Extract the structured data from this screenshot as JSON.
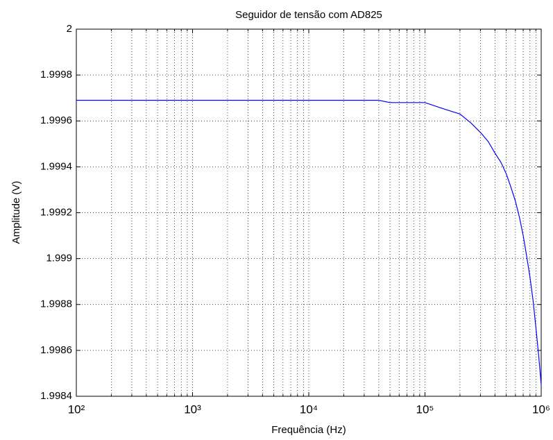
{
  "chart_data": {
    "type": "line",
    "title": "Seguidor de tensão com AD825",
    "xlabel": "Frequência (Hz)",
    "ylabel": "Amplitude (V)",
    "log_x": true,
    "grid": true,
    "x": [
      100,
      1000,
      10000,
      40000,
      50000,
      70000,
      100000,
      150000,
      200000,
      250000,
      300000,
      350000,
      400000,
      450000,
      500000,
      550000,
      600000,
      650000,
      700000,
      750000,
      800000,
      850000,
      900000,
      950000,
      1000000
    ],
    "series": [
      {
        "name": "Amplitude",
        "color": "#0000ff",
        "values": [
          1.99969,
          1.99969,
          1.99969,
          1.99969,
          1.99968,
          1.99968,
          1.99968,
          1.99965,
          1.99963,
          1.99959,
          1.99955,
          1.99951,
          1.99946,
          1.99942,
          1.99937,
          1.99931,
          1.99925,
          1.99918,
          1.9991,
          1.99901,
          1.99892,
          1.99882,
          1.9987,
          1.99858,
          1.99845
        ]
      }
    ],
    "xlim": [
      100,
      1000000
    ],
    "xticks": [
      {
        "value": 100,
        "label": "10²"
      },
      {
        "value": 1000,
        "label": "10³"
      },
      {
        "value": 10000,
        "label": "10⁴"
      },
      {
        "value": 100000,
        "label": "10⁵"
      },
      {
        "value": 1000000,
        "label": "10⁶"
      }
    ],
    "x_minor_ticks": [
      200,
      300,
      400,
      500,
      600,
      700,
      800,
      900,
      2000,
      3000,
      4000,
      5000,
      6000,
      7000,
      8000,
      9000,
      20000,
      30000,
      40000,
      50000,
      60000,
      70000,
      80000,
      90000,
      200000,
      300000,
      400000,
      500000,
      600000,
      700000,
      800000,
      900000
    ],
    "ylim": [
      1.9984,
      2
    ],
    "yticks": [
      1.9984,
      1.9986,
      1.9988,
      1.999,
      1.9992,
      1.9994,
      1.9996,
      1.9998,
      2
    ]
  }
}
